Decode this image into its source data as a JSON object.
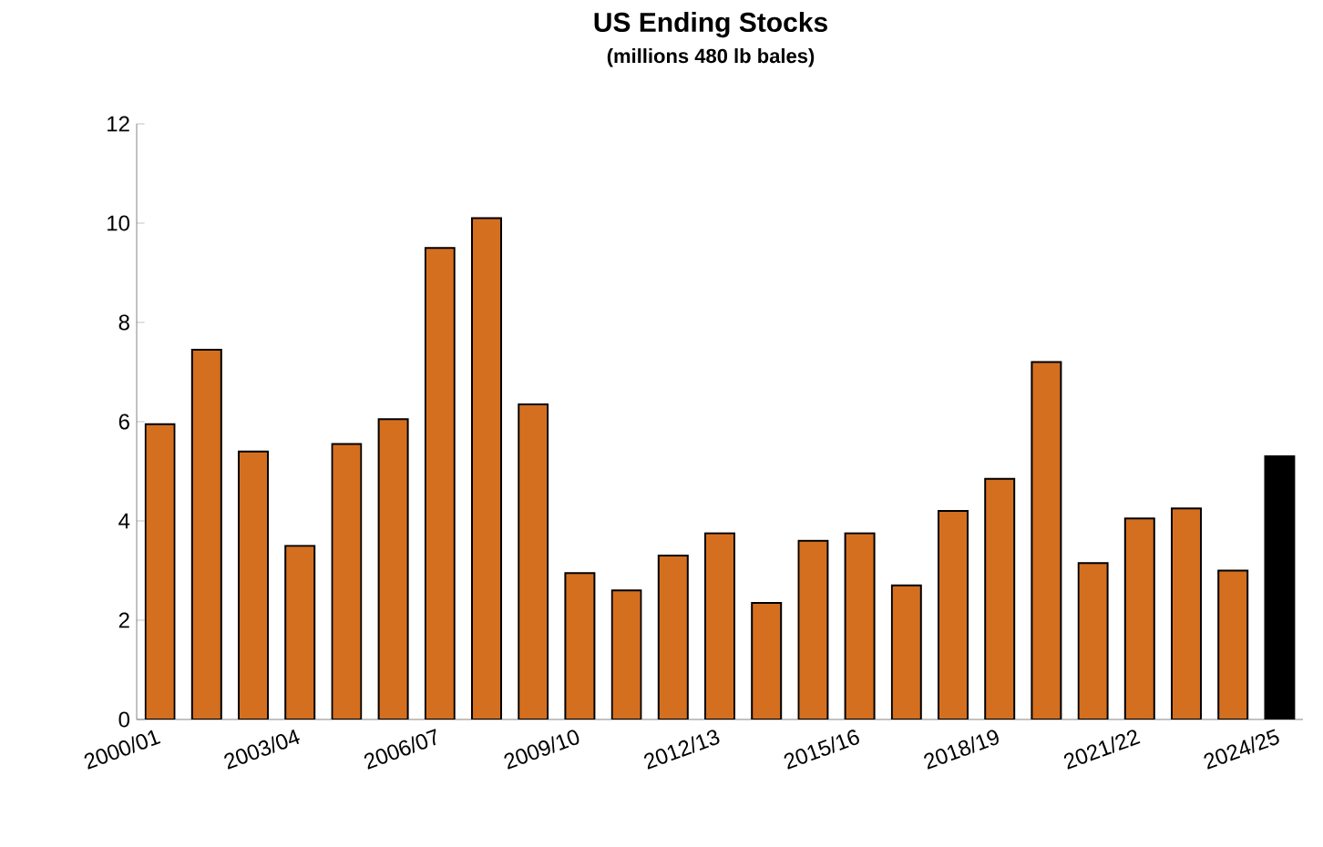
{
  "chart_data": {
    "type": "bar",
    "title": "US Ending Stocks",
    "subtitle": "(millions 480 lb bales)",
    "categories": [
      "2000/01",
      null,
      null,
      "2003/04",
      null,
      null,
      "2006/07",
      null,
      null,
      "2009/10",
      null,
      null,
      "2012/13",
      null,
      null,
      "2015/16",
      null,
      null,
      "2018/19",
      null,
      null,
      "2021/22",
      null,
      null,
      "2024/25"
    ],
    "values": [
      5.95,
      7.45,
      5.4,
      3.5,
      5.55,
      6.05,
      9.5,
      10.1,
      6.35,
      2.95,
      2.6,
      3.3,
      3.75,
      2.35,
      3.6,
      3.75,
      2.7,
      4.2,
      4.85,
      7.2,
      3.15,
      4.05,
      4.25,
      3.0,
      5.3
    ],
    "colors": [
      "#d46f1f",
      "#d46f1f",
      "#d46f1f",
      "#d46f1f",
      "#d46f1f",
      "#d46f1f",
      "#d46f1f",
      "#d46f1f",
      "#d46f1f",
      "#d46f1f",
      "#d46f1f",
      "#d46f1f",
      "#d46f1f",
      "#d46f1f",
      "#d46f1f",
      "#d46f1f",
      "#d46f1f",
      "#d46f1f",
      "#d46f1f",
      "#d46f1f",
      "#d46f1f",
      "#d46f1f",
      "#d46f1f",
      "#d46f1f",
      "#000000"
    ],
    "ylim": [
      0,
      12
    ],
    "yticks": [
      0,
      2,
      4,
      6,
      8,
      10,
      12
    ]
  }
}
